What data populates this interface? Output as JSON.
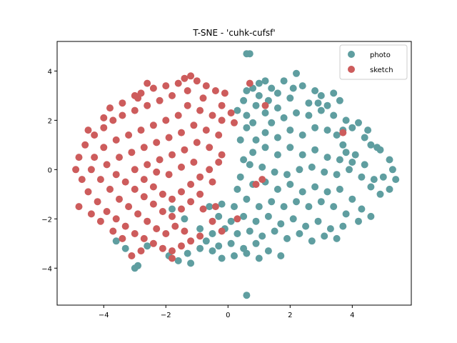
{
  "chart_data": {
    "type": "scatter",
    "title": "T-SNE - 'cuhk-cufsf'",
    "xlabel": "",
    "ylabel": "",
    "xlim": [
      -5.5,
      5.9
    ],
    "ylim": [
      -5.5,
      5.2
    ],
    "xticks": [
      -4,
      -2,
      0,
      2,
      4
    ],
    "yticks": [
      -4,
      -2,
      0,
      2,
      4
    ],
    "grid": false,
    "legend_position": "top-right",
    "series": [
      {
        "name": "photo",
        "color": "#5f9ea0",
        "points": [
          [
            0.6,
            4.7
          ],
          [
            0.7,
            4.7
          ],
          [
            0.6,
            3.2
          ],
          [
            0.8,
            3.3
          ],
          [
            1.0,
            3.5
          ],
          [
            1.2,
            3.6
          ],
          [
            1.4,
            3.3
          ],
          [
            1.8,
            3.6
          ],
          [
            2.2,
            3.9
          ],
          [
            2.4,
            3.4
          ],
          [
            2.8,
            3.2
          ],
          [
            3.0,
            3.0
          ],
          [
            3.4,
            3.1
          ],
          [
            3.6,
            2.8
          ],
          [
            3.2,
            2.6
          ],
          [
            2.6,
            2.7
          ],
          [
            2.0,
            2.9
          ],
          [
            1.6,
            2.5
          ],
          [
            1.2,
            2.3
          ],
          [
            0.9,
            2.6
          ],
          [
            0.5,
            2.8
          ],
          [
            0.3,
            2.4
          ],
          [
            0.6,
            2.2
          ],
          [
            1.4,
            1.9
          ],
          [
            1.8,
            2.1
          ],
          [
            2.2,
            2.3
          ],
          [
            2.6,
            2.2
          ],
          [
            3.0,
            2.4
          ],
          [
            3.4,
            2.2
          ],
          [
            3.8,
            2.0
          ],
          [
            4.0,
            1.7
          ],
          [
            4.4,
            1.3
          ],
          [
            4.6,
            1.0
          ],
          [
            4.9,
            0.8
          ],
          [
            5.2,
            0.4
          ],
          [
            5.3,
            0.0
          ],
          [
            5.4,
            -0.4
          ],
          [
            5.2,
            -0.8
          ],
          [
            4.9,
            -1.0
          ],
          [
            4.6,
            -0.7
          ],
          [
            4.3,
            -0.3
          ],
          [
            4.0,
            0.3
          ],
          [
            3.7,
            1.0
          ],
          [
            3.5,
            1.4
          ],
          [
            3.2,
            1.6
          ],
          [
            2.8,
            1.7
          ],
          [
            2.4,
            1.4
          ],
          [
            2.0,
            1.6
          ],
          [
            1.6,
            1.3
          ],
          [
            1.2,
            1.5
          ],
          [
            0.9,
            1.2
          ],
          [
            0.6,
            1.7
          ],
          [
            0.4,
            1.2
          ],
          [
            0.8,
            0.7
          ],
          [
            1.2,
            0.9
          ],
          [
            1.6,
            0.6
          ],
          [
            2.0,
            0.9
          ],
          [
            2.4,
            0.6
          ],
          [
            2.8,
            0.8
          ],
          [
            3.2,
            0.5
          ],
          [
            3.6,
            0.4
          ],
          [
            3.9,
            0.0
          ],
          [
            3.5,
            -0.2
          ],
          [
            3.1,
            -0.1
          ],
          [
            2.7,
            0.1
          ],
          [
            2.3,
            0.0
          ],
          [
            1.9,
            -0.2
          ],
          [
            1.5,
            -0.1
          ],
          [
            1.1,
            0.1
          ],
          [
            0.7,
            0.2
          ],
          [
            0.4,
            -0.3
          ],
          [
            0.8,
            -0.6
          ],
          [
            1.2,
            -0.5
          ],
          [
            1.6,
            -0.8
          ],
          [
            2.0,
            -0.6
          ],
          [
            2.4,
            -0.9
          ],
          [
            2.8,
            -0.7
          ],
          [
            3.2,
            -0.9
          ],
          [
            3.6,
            -0.8
          ],
          [
            4.0,
            -1.2
          ],
          [
            4.3,
            -1.6
          ],
          [
            4.6,
            -1.9
          ],
          [
            4.2,
            -2.1
          ],
          [
            3.8,
            -1.8
          ],
          [
            3.4,
            -1.5
          ],
          [
            3.0,
            -1.3
          ],
          [
            2.6,
            -1.5
          ],
          [
            2.2,
            -1.3
          ],
          [
            1.8,
            -1.5
          ],
          [
            1.4,
            -1.3
          ],
          [
            1.0,
            -1.5
          ],
          [
            0.6,
            -1.2
          ],
          [
            0.2,
            -1.5
          ],
          [
            -0.2,
            -1.4
          ],
          [
            -0.6,
            -1.5
          ],
          [
            -0.3,
            -1.9
          ],
          [
            0.1,
            -2.1
          ],
          [
            0.5,
            -1.9
          ],
          [
            0.9,
            -2.1
          ],
          [
            1.3,
            -1.9
          ],
          [
            1.7,
            -2.2
          ],
          [
            2.1,
            -2.0
          ],
          [
            2.5,
            -2.3
          ],
          [
            2.9,
            -2.1
          ],
          [
            3.3,
            -2.4
          ],
          [
            3.7,
            -2.3
          ],
          [
            3.5,
            -2.8
          ],
          [
            3.1,
            -2.7
          ],
          [
            2.7,
            -2.9
          ],
          [
            2.3,
            -2.6
          ],
          [
            1.9,
            -2.8
          ],
          [
            1.5,
            -2.5
          ],
          [
            1.1,
            -2.7
          ],
          [
            0.7,
            -2.5
          ],
          [
            0.3,
            -2.6
          ],
          [
            -0.1,
            -2.4
          ],
          [
            -0.5,
            -2.6
          ],
          [
            -0.9,
            -2.4
          ],
          [
            -0.7,
            -2.9
          ],
          [
            -0.3,
            -3.1
          ],
          [
            0.1,
            -3.0
          ],
          [
            0.5,
            -3.2
          ],
          [
            0.9,
            -3.0
          ],
          [
            1.3,
            -3.3
          ],
          [
            1.7,
            -3.5
          ],
          [
            1.0,
            -3.6
          ],
          [
            0.6,
            -3.4
          ],
          [
            0.2,
            -3.5
          ],
          [
            -0.2,
            -3.6
          ],
          [
            -0.5,
            -3.3
          ],
          [
            -0.9,
            -3.2
          ],
          [
            -1.3,
            -3.4
          ],
          [
            -1.6,
            -3.7
          ],
          [
            -1.9,
            -3.5
          ],
          [
            -1.2,
            -3.8
          ],
          [
            -2.9,
            -3.9
          ],
          [
            -3.0,
            -4.0
          ],
          [
            -3.3,
            -3.2
          ],
          [
            -3.6,
            -2.9
          ],
          [
            -2.6,
            -3.1
          ],
          [
            0.6,
            -5.1
          ],
          [
            4.8,
            0.9
          ],
          [
            5.0,
            -0.3
          ],
          [
            4.7,
            -0.4
          ],
          [
            4.4,
            0.2
          ],
          [
            4.1,
            0.6
          ],
          [
            3.8,
            0.7
          ],
          [
            1.0,
            3.0
          ],
          [
            1.6,
            3.1
          ],
          [
            2.9,
            2.7
          ],
          [
            3.7,
            1.6
          ],
          [
            4.2,
            1.9
          ],
          [
            4.5,
            1.6
          ],
          [
            2.1,
            3.3
          ],
          [
            1.3,
            2.8
          ],
          [
            0.8,
            1.9
          ],
          [
            0.5,
            0.4
          ],
          [
            0.3,
            -0.8
          ],
          [
            -1.4,
            -2.0
          ],
          [
            -1.8,
            -1.6
          ]
        ]
      },
      {
        "name": "sketch",
        "color": "#cd5c5c",
        "points": [
          [
            -1.4,
            3.7
          ],
          [
            -1.2,
            3.8
          ],
          [
            -1.0,
            3.6
          ],
          [
            -1.6,
            3.5
          ],
          [
            -2.0,
            3.4
          ],
          [
            -2.4,
            3.3
          ],
          [
            -2.8,
            3.1
          ],
          [
            -0.7,
            3.4
          ],
          [
            -0.4,
            3.2
          ],
          [
            -0.1,
            3.1
          ],
          [
            -1.8,
            3.0
          ],
          [
            -2.2,
            2.8
          ],
          [
            -2.6,
            2.6
          ],
          [
            -3.0,
            2.4
          ],
          [
            -3.4,
            2.2
          ],
          [
            -3.7,
            2.0
          ],
          [
            -4.0,
            1.7
          ],
          [
            -4.3,
            1.4
          ],
          [
            -4.6,
            1.0
          ],
          [
            -4.8,
            0.5
          ],
          [
            -4.9,
            0.0
          ],
          [
            -4.7,
            -0.4
          ],
          [
            -4.5,
            -0.9
          ],
          [
            -4.2,
            -1.3
          ],
          [
            -3.9,
            -1.7
          ],
          [
            -3.6,
            -2.0
          ],
          [
            -3.3,
            -2.3
          ],
          [
            -3.0,
            -2.6
          ],
          [
            -2.7,
            -2.8
          ],
          [
            -2.4,
            -3.0
          ],
          [
            -2.1,
            -3.2
          ],
          [
            -1.8,
            -3.3
          ],
          [
            -1.5,
            -3.1
          ],
          [
            -1.2,
            -2.9
          ],
          [
            -0.9,
            -2.7
          ],
          [
            -2.8,
            -3.3
          ],
          [
            -3.1,
            -3.5
          ],
          [
            -1.3,
            2.6
          ],
          [
            -0.9,
            2.4
          ],
          [
            -0.5,
            2.2
          ],
          [
            -0.2,
            2.0
          ],
          [
            -1.6,
            2.2
          ],
          [
            -2.0,
            2.0
          ],
          [
            -2.4,
            1.8
          ],
          [
            -2.8,
            1.6
          ],
          [
            -3.2,
            1.4
          ],
          [
            -3.6,
            1.2
          ],
          [
            -4.0,
            0.9
          ],
          [
            -4.3,
            0.5
          ],
          [
            -4.4,
            0.0
          ],
          [
            -4.1,
            -0.4
          ],
          [
            -3.8,
            -0.8
          ],
          [
            -3.5,
            -1.2
          ],
          [
            -3.2,
            -1.5
          ],
          [
            -2.9,
            -1.8
          ],
          [
            -2.6,
            -2.1
          ],
          [
            -2.3,
            -2.4
          ],
          [
            -2.0,
            -2.6
          ],
          [
            -1.7,
            -2.3
          ],
          [
            -1.4,
            -2.5
          ],
          [
            -1.1,
            1.8
          ],
          [
            -0.7,
            1.6
          ],
          [
            -0.3,
            1.4
          ],
          [
            -1.5,
            1.5
          ],
          [
            -1.9,
            1.3
          ],
          [
            -2.3,
            1.1
          ],
          [
            -2.7,
            0.9
          ],
          [
            -3.1,
            0.7
          ],
          [
            -3.5,
            0.5
          ],
          [
            -3.9,
            0.2
          ],
          [
            -3.6,
            -0.2
          ],
          [
            -3.3,
            -0.5
          ],
          [
            -3.0,
            -0.8
          ],
          [
            -2.7,
            -1.1
          ],
          [
            -2.4,
            -1.4
          ],
          [
            -2.1,
            -1.7
          ],
          [
            -1.8,
            -1.9
          ],
          [
            -1.5,
            -1.6
          ],
          [
            -1.2,
            -1.3
          ],
          [
            -0.9,
            -1.0
          ],
          [
            -1.0,
            1.1
          ],
          [
            -0.6,
            0.9
          ],
          [
            -0.2,
            0.6
          ],
          [
            -1.4,
            0.8
          ],
          [
            -1.8,
            0.6
          ],
          [
            -2.2,
            0.4
          ],
          [
            -2.6,
            0.2
          ],
          [
            -3.0,
            0.0
          ],
          [
            -2.7,
            -0.4
          ],
          [
            -2.4,
            -0.7
          ],
          [
            -2.1,
            -1.0
          ],
          [
            -1.8,
            -1.2
          ],
          [
            -1.5,
            -0.9
          ],
          [
            -1.2,
            -0.6
          ],
          [
            -0.9,
            -0.3
          ],
          [
            -0.6,
            0.0
          ],
          [
            -0.3,
            0.3
          ],
          [
            -1.1,
            0.3
          ],
          [
            -1.5,
            0.1
          ],
          [
            -1.9,
            -0.2
          ],
          [
            -2.3,
            -0.1
          ],
          [
            -3.4,
            2.7
          ],
          [
            -3.8,
            2.5
          ],
          [
            -4.0,
            2.1
          ],
          [
            -2.9,
            2.9
          ],
          [
            -0.2,
            2.6
          ],
          [
            0.1,
            2.3
          ],
          [
            0.2,
            1.9
          ],
          [
            -0.5,
            -0.5
          ],
          [
            -0.8,
            -1.6
          ],
          [
            -0.5,
            -2.1
          ],
          [
            -0.2,
            -2.5
          ],
          [
            0.3,
            -2.0
          ],
          [
            -0.4,
            -1.5
          ],
          [
            0.7,
            3.5
          ],
          [
            1.2,
            2.6
          ],
          [
            3.7,
            1.5
          ],
          [
            1.1,
            -0.4
          ],
          [
            0.9,
            -0.6
          ],
          [
            -1.8,
            -3.6
          ],
          [
            -2.6,
            3.5
          ],
          [
            -3.0,
            3.0
          ],
          [
            -1.3,
            3.2
          ],
          [
            -0.8,
            2.9
          ],
          [
            -4.5,
            1.6
          ],
          [
            -4.8,
            -1.5
          ],
          [
            -4.4,
            -1.8
          ],
          [
            -4.1,
            -2.1
          ],
          [
            -3.7,
            -2.5
          ],
          [
            -3.4,
            -2.8
          ]
        ]
      }
    ]
  }
}
